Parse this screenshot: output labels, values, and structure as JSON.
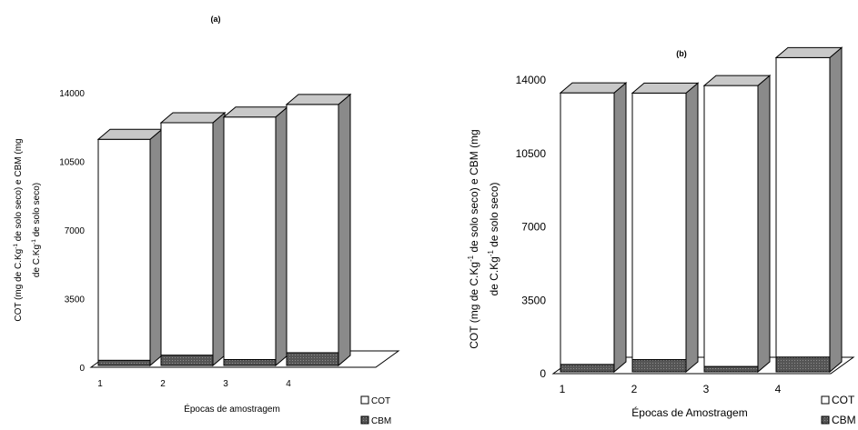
{
  "chart_data": [
    {
      "type": "bar",
      "panel_label": "(a)",
      "categories": [
        "1",
        "2",
        "3",
        "4"
      ],
      "stacked": true,
      "three_d": true,
      "series": [
        {
          "name": "CBM",
          "values": [
            260,
            520,
            300,
            650
          ],
          "color": "#555555"
        },
        {
          "name": "COT",
          "values": [
            11270,
            11860,
            12370,
            12660
          ],
          "color": "#ffffff"
        }
      ],
      "ylim": [
        0,
        14000
      ],
      "yticks": [
        0,
        3500,
        7000,
        10500,
        14000
      ],
      "xlabel": "Épocas de amostragem",
      "ylabel_line1": "COT (mg de C.Kg-1 de solo seco) e CBM (mg",
      "ylabel_line2": "de C.Kg-1 de solo seco)",
      "legend": [
        "COT",
        "CBM"
      ],
      "legend_position": "bottom-right",
      "grid": false
    },
    {
      "type": "bar",
      "panel_label": "(b)",
      "categories": [
        "1",
        "2",
        "3",
        "4"
      ],
      "stacked": true,
      "three_d": true,
      "series": [
        {
          "name": "CBM",
          "values": [
            350,
            580,
            250,
            700
          ],
          "color": "#555555"
        },
        {
          "name": "COT",
          "values": [
            12950,
            12710,
            13400,
            14280
          ],
          "color": "#ffffff"
        }
      ],
      "ylim": [
        0,
        14000
      ],
      "yticks": [
        0,
        3500,
        7000,
        10500,
        14000
      ],
      "xlabel": "Épocas de Amostragem",
      "ylabel_line1": "COT (mg de C.Kg-1 de solo seco) e CBM (mg",
      "ylabel_line2": "de C.Kg-1 de solo seco)",
      "legend": [
        "COT",
        "CBM"
      ],
      "legend_position": "bottom-right",
      "grid": false
    }
  ]
}
